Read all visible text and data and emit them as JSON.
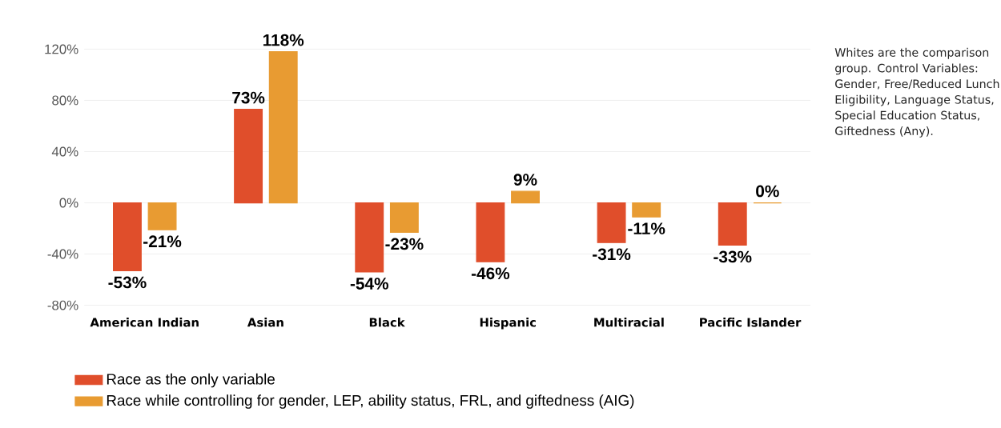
{
  "chart_data": {
    "type": "bar",
    "categories": [
      "American Indian",
      "Asian",
      "Black",
      "Hispanic",
      "Multiracial",
      "Pacific Islander"
    ],
    "series": [
      {
        "name": "Race as the only variable",
        "color": "#e04e2b",
        "values": [
          -53,
          73,
          -54,
          -46,
          -31,
          -33
        ],
        "value_labels": [
          "-53%",
          "73%",
          "-54%",
          "-46%",
          "-31%",
          "-33%"
        ]
      },
      {
        "name": "Race while controlling for gender, LEP, ability status, FRL, and giftedness (AIG)",
        "color": "#e89b32",
        "values": [
          -21,
          118,
          -23,
          9,
          -11,
          0
        ],
        "value_labels": [
          "-21%",
          "118%",
          "-23%",
          "9%",
          "-11%",
          "0%"
        ]
      }
    ],
    "ylim": [
      -80,
      120
    ],
    "yticks": [
      {
        "value": -80,
        "label": "-80%"
      },
      {
        "value": -40,
        "label": "-40%"
      },
      {
        "value": 0,
        "label": "0%"
      },
      {
        "value": 40,
        "label": "40%"
      },
      {
        "value": 80,
        "label": "80%"
      },
      {
        "value": 120,
        "label": "120%"
      }
    ],
    "grid": "y",
    "legend": "bottom",
    "annotations": [
      "Whites are the comparison group. Control Variables: Gender, Free/Reduced Lunch Eligibility, Language Status, Special Education Status, Giftedness (Any)."
    ]
  }
}
